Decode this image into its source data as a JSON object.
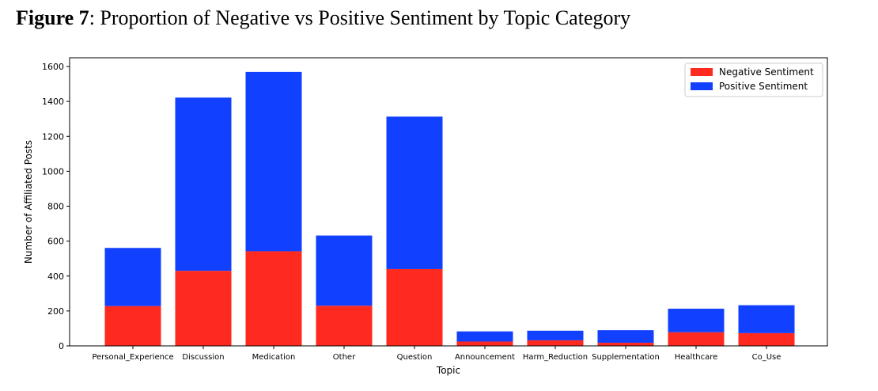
{
  "caption": {
    "prefix": "Figure 7",
    "text": ": Proportion of Negative vs Positive Sentiment by Topic Category"
  },
  "chart_data": {
    "type": "bar",
    "stacked": true,
    "categories": [
      "Personal_Experience",
      "Discussion",
      "Medication",
      "Other",
      "Question",
      "Announcement",
      "Harm_Reduction",
      "Supplementation",
      "Healthcare",
      "Co_Use"
    ],
    "series": [
      {
        "name": "Negative Sentiment",
        "color": "#ff2a1f",
        "values": [
          228,
          430,
          542,
          230,
          440,
          25,
          32,
          18,
          78,
          73
        ]
      },
      {
        "name": "Positive Sentiment",
        "color": "#1140ff",
        "values": [
          333,
          992,
          1027,
          402,
          873,
          58,
          55,
          72,
          135,
          160
        ]
      }
    ],
    "xlabel": "Topic",
    "ylabel": "Number of Affiliated Posts",
    "ylim": [
      0,
      1650
    ],
    "yticks": [
      0,
      200,
      400,
      600,
      800,
      1000,
      1200,
      1400,
      1600
    ],
    "grid": false,
    "legend_position": "top-right"
  }
}
